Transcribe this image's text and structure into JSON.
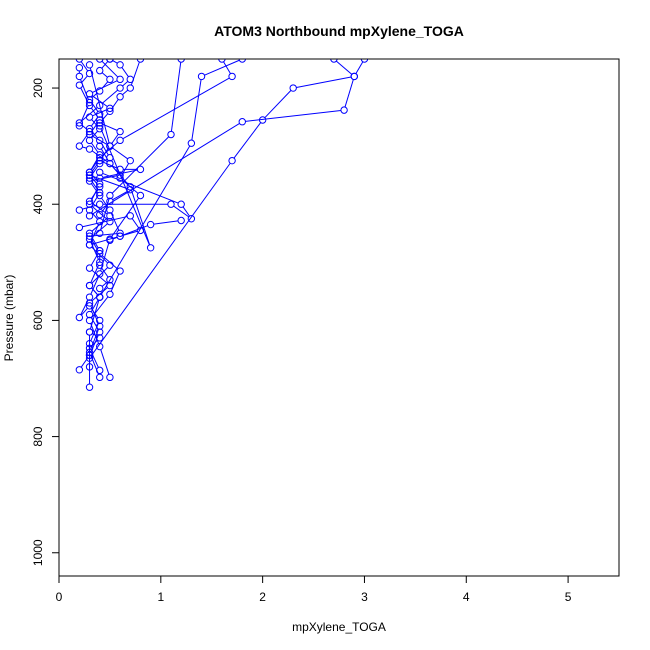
{
  "chart_data": {
    "type": "line",
    "title": "ATOM3 Northbound mpXylene_TOGA",
    "xlabel": "mpXylene_TOGA",
    "ylabel": "Pressure (mbar)",
    "xlim": [
      0,
      5.5
    ],
    "ylim": [
      1040,
      150
    ],
    "x_ticks": [
      "0",
      "1",
      "2",
      "3",
      "4",
      "5"
    ],
    "x_tick_values": [
      0,
      1,
      2,
      3,
      4,
      5
    ],
    "y_ticks": [
      "200",
      "400",
      "600",
      "800",
      "1000"
    ],
    "y_tick_values": [
      200,
      400,
      600,
      800,
      1000
    ],
    "y_reversed": true,
    "grid": false,
    "color": "#0000ff",
    "series": [
      {
        "points": [
          [
            0.3,
            715
          ],
          [
            0.3,
            660
          ],
          [
            0.3,
            620
          ],
          [
            0.4,
            560
          ],
          [
            0.3,
            540
          ],
          [
            0.5,
            505
          ],
          [
            0.3,
            470
          ],
          [
            0.4,
            430
          ],
          [
            0.3,
            410
          ],
          [
            0.4,
            380
          ],
          [
            0.3,
            355
          ],
          [
            0.4,
            330
          ],
          [
            0.5,
            320
          ],
          [
            0.4,
            290
          ],
          [
            0.3,
            270
          ],
          [
            0.4,
            245
          ],
          [
            0.3,
            220
          ],
          [
            0.4,
            205
          ],
          [
            0.5,
            185
          ],
          [
            0.4,
            170
          ],
          [
            0.5,
            150
          ]
        ]
      },
      {
        "points": [
          [
            0.2,
            685
          ],
          [
            0.3,
            660
          ],
          [
            0.4,
            620
          ],
          [
            0.3,
            590
          ],
          [
            0.4,
            560
          ],
          [
            0.3,
            540
          ],
          [
            0.4,
            500
          ],
          [
            0.3,
            460
          ],
          [
            0.5,
            430
          ],
          [
            0.3,
            400
          ],
          [
            0.4,
            365
          ],
          [
            0.3,
            345
          ],
          [
            0.4,
            315
          ],
          [
            0.3,
            290
          ],
          [
            0.4,
            270
          ],
          [
            0.3,
            250
          ],
          [
            0.5,
            235
          ],
          [
            0.3,
            210
          ],
          [
            0.6,
            185
          ],
          [
            0.4,
            150
          ]
        ]
      },
      {
        "points": [
          [
            0.4,
            698
          ],
          [
            0.3,
            655
          ],
          [
            0.4,
            610
          ],
          [
            0.3,
            570
          ],
          [
            0.5,
            540
          ],
          [
            0.3,
            510
          ],
          [
            0.4,
            480
          ],
          [
            0.3,
            450
          ],
          [
            0.5,
            420
          ],
          [
            0.3,
            395
          ],
          [
            0.4,
            370
          ],
          [
            0.3,
            350
          ],
          [
            0.4,
            325
          ],
          [
            0.5,
            300
          ],
          [
            0.3,
            280
          ],
          [
            0.4,
            255
          ],
          [
            0.3,
            230
          ],
          [
            0.2,
            195
          ],
          [
            0.3,
            175
          ],
          [
            0.2,
            150
          ]
        ]
      },
      {
        "points": [
          [
            0.5,
            698
          ],
          [
            0.4,
            645
          ],
          [
            0.3,
            600
          ],
          [
            0.5,
            555
          ],
          [
            0.6,
            515
          ],
          [
            0.4,
            485
          ],
          [
            0.3,
            455
          ],
          [
            0.6,
            450
          ],
          [
            0.5,
            410
          ],
          [
            0.4,
            385
          ],
          [
            0.3,
            360
          ],
          [
            0.6,
            350
          ],
          [
            0.5,
            330
          ],
          [
            0.3,
            305
          ],
          [
            0.2,
            300
          ],
          [
            0.3,
            275
          ],
          [
            0.2,
            260
          ],
          [
            0.4,
            230
          ],
          [
            0.6,
            200
          ],
          [
            0.7,
            185
          ],
          [
            0.6,
            160
          ],
          [
            0.5,
            150
          ]
        ]
      },
      {
        "points": [
          [
            0.3,
            680
          ],
          [
            0.3,
            640
          ],
          [
            0.4,
            600
          ],
          [
            0.3,
            575
          ],
          [
            0.2,
            595
          ],
          [
            0.3,
            560
          ],
          [
            0.4,
            520
          ],
          [
            0.5,
            460
          ],
          [
            0.8,
            385
          ],
          [
            0.6,
            355
          ],
          [
            0.7,
            325
          ],
          [
            0.5,
            300
          ],
          [
            0.6,
            275
          ],
          [
            0.4,
            260
          ],
          [
            0.5,
            240
          ],
          [
            0.6,
            215
          ],
          [
            0.7,
            200
          ],
          [
            0.8,
            150
          ]
        ]
      },
      {
        "points": [
          [
            0.3,
            665
          ],
          [
            1.7,
            325
          ],
          [
            2.0,
            255
          ],
          [
            2.3,
            200
          ],
          [
            2.9,
            180
          ],
          [
            2.7,
            150
          ]
        ]
      },
      {
        "points": [
          [
            0.4,
            560
          ],
          [
            1.3,
            295
          ],
          [
            1.4,
            180
          ],
          [
            1.8,
            150
          ]
        ]
      },
      {
        "points": [
          [
            0.4,
            450
          ],
          [
            0.5,
            385
          ],
          [
            1.1,
            280
          ],
          [
            1.2,
            150
          ]
        ]
      },
      {
        "points": [
          [
            0.3,
            420
          ],
          [
            1.8,
            258
          ],
          [
            2.8,
            238
          ],
          [
            2.9,
            180
          ],
          [
            3.0,
            150
          ]
        ]
      },
      {
        "points": [
          [
            0.3,
            345
          ],
          [
            0.4,
            320
          ],
          [
            0.6,
            290
          ],
          [
            1.7,
            180
          ],
          [
            1.6,
            150
          ]
        ]
      },
      {
        "points": [
          [
            0.4,
            265
          ],
          [
            0.9,
            475
          ],
          [
            0.7,
            370
          ],
          [
            0.5,
            330
          ],
          [
            0.4,
            300
          ]
        ]
      },
      {
        "points": [
          [
            0.2,
            410
          ],
          [
            0.4,
            400
          ],
          [
            1.1,
            400
          ],
          [
            1.3,
            425
          ],
          [
            1.2,
            400
          ],
          [
            0.4,
            345
          ]
        ]
      },
      {
        "points": [
          [
            0.3,
            470
          ],
          [
            0.6,
            455
          ],
          [
            0.9,
            435
          ],
          [
            1.2,
            428
          ]
        ]
      },
      {
        "points": [
          [
            0.2,
            440
          ],
          [
            0.7,
            420
          ],
          [
            0.8,
            445
          ],
          [
            0.6,
            455
          ],
          [
            0.5,
            462
          ]
        ]
      },
      {
        "points": [
          [
            0.3,
            350
          ],
          [
            0.7,
            375
          ],
          [
            0.5,
            395
          ],
          [
            0.4,
            418
          ]
        ]
      },
      {
        "points": [
          [
            0.3,
            160
          ],
          [
            0.5,
            300
          ],
          [
            0.4,
            325
          ],
          [
            0.6,
            340
          ],
          [
            0.8,
            340
          ],
          [
            0.4,
            355
          ]
        ]
      },
      {
        "points": [
          [
            0.2,
            165
          ],
          [
            0.2,
            180
          ],
          [
            0.3,
            225
          ],
          [
            0.2,
            265
          ]
        ]
      },
      {
        "points": [
          [
            0.4,
            480
          ],
          [
            0.4,
            505
          ],
          [
            0.5,
            530
          ],
          [
            0.4,
            545
          ]
        ]
      },
      {
        "points": [
          [
            0.3,
            620
          ],
          [
            0.4,
            630
          ],
          [
            0.3,
            648
          ],
          [
            0.4,
            686
          ]
        ]
      }
    ]
  }
}
